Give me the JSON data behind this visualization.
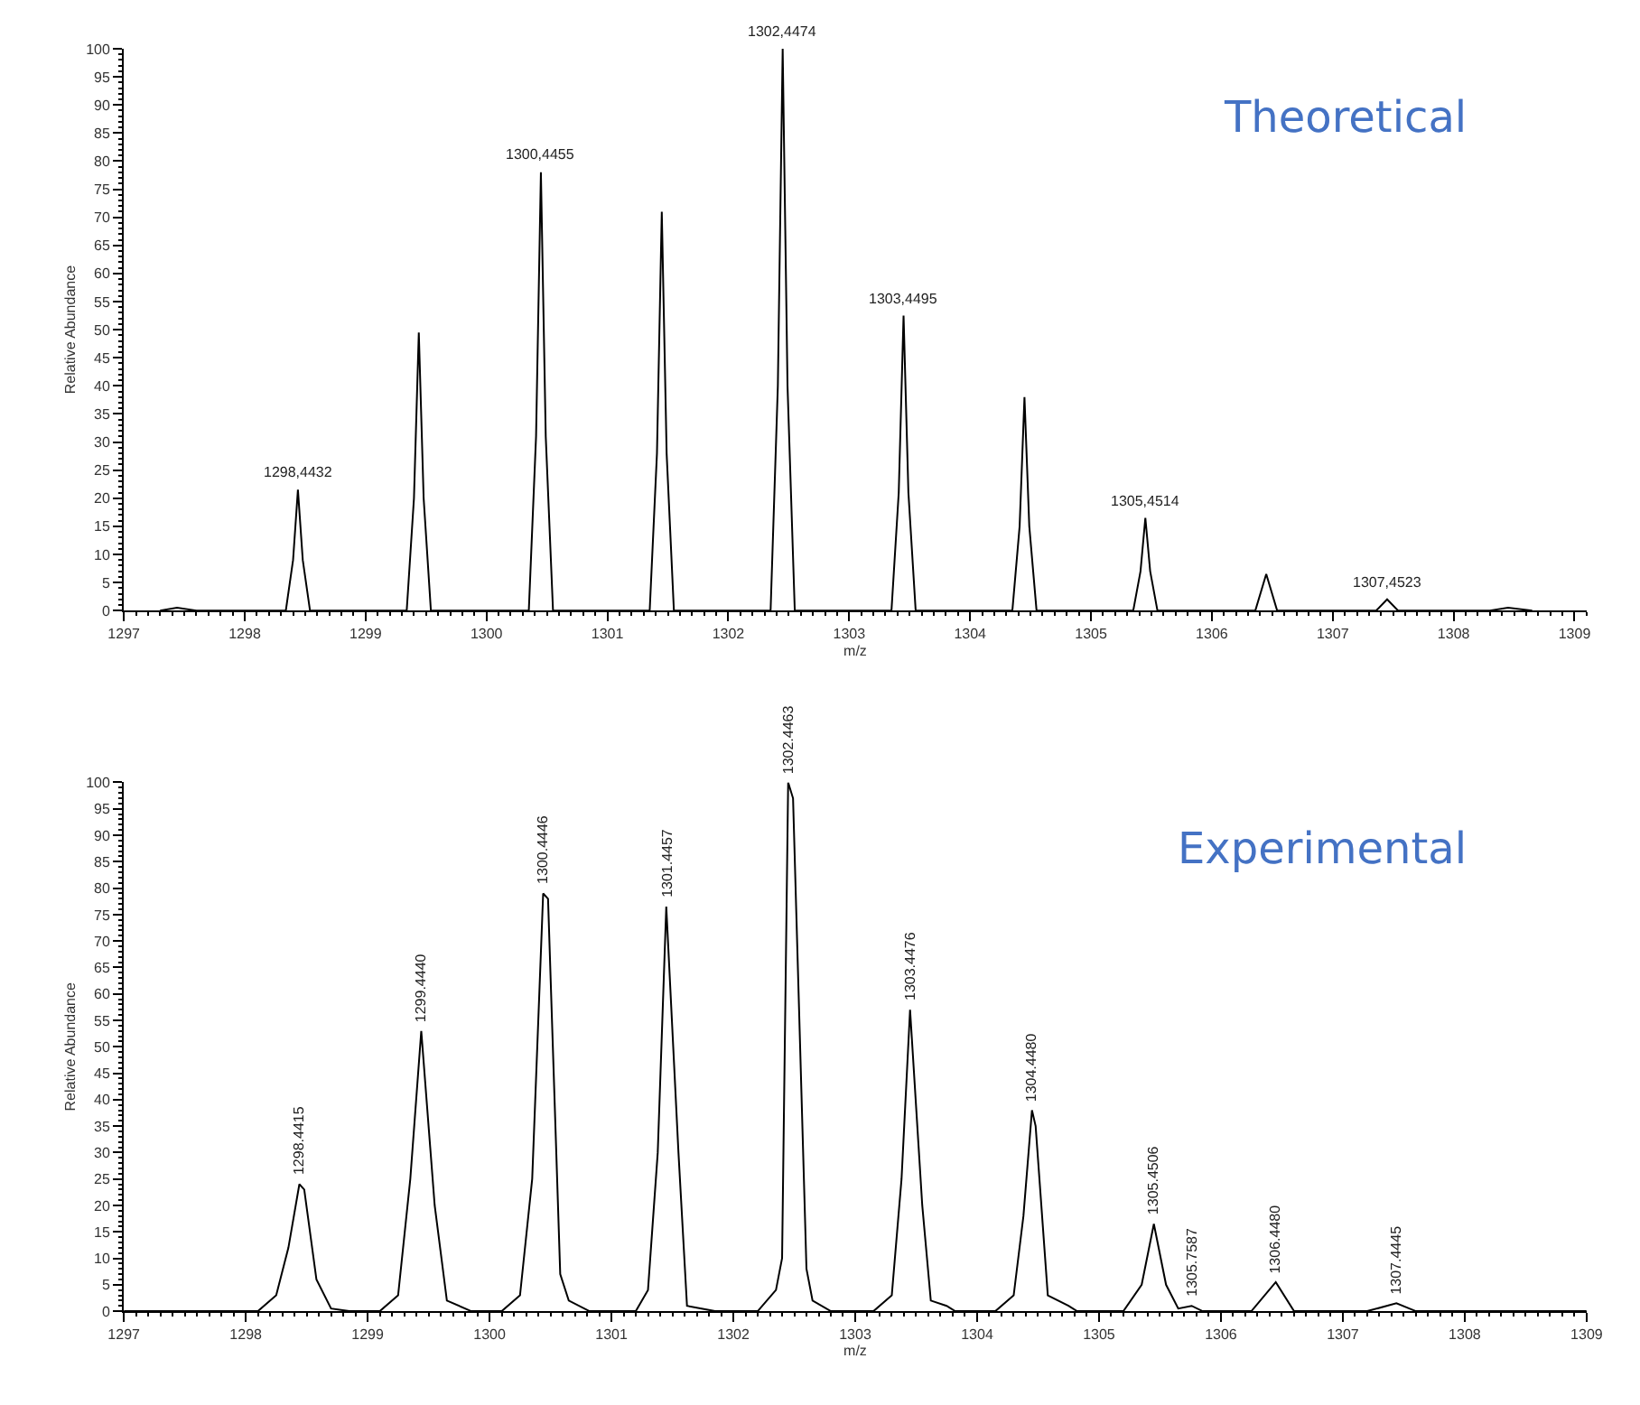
{
  "chart_data": [
    {
      "type": "line",
      "title": "Theoretical",
      "xlabel": "m/z",
      "ylabel": "Relative Abundance",
      "xlim": [
        1297,
        1309.1
      ],
      "xticks": [
        1297,
        1298,
        1299,
        1300,
        1301,
        1302,
        1303,
        1304,
        1305,
        1306,
        1307,
        1308,
        1309
      ],
      "ylim": [
        0,
        100
      ],
      "yticks": [
        0,
        5,
        10,
        15,
        20,
        25,
        30,
        35,
        40,
        45,
        50,
        55,
        60,
        65,
        70,
        75,
        80,
        85,
        90,
        95,
        100
      ],
      "marker": "none",
      "line_style": "solid",
      "series": [
        {
          "color": "#000000",
          "x": [
            1297.3,
            1297.44,
            1297.6,
            1298.34,
            1298.4,
            1298.44,
            1298.48,
            1298.54,
            1299.34,
            1299.4,
            1299.44,
            1299.48,
            1299.54,
            1300.35,
            1300.41,
            1300.45,
            1300.49,
            1300.55,
            1301.35,
            1301.41,
            1301.45,
            1301.49,
            1301.55,
            1302.35,
            1302.41,
            1302.45,
            1302.49,
            1302.55,
            1303.35,
            1303.41,
            1303.45,
            1303.49,
            1303.55,
            1304.35,
            1304.41,
            1304.45,
            1304.49,
            1304.55,
            1305.35,
            1305.41,
            1305.45,
            1305.49,
            1305.55,
            1306.36,
            1306.45,
            1306.54,
            1307.36,
            1307.45,
            1307.54,
            1308.3,
            1308.45,
            1308.65
          ],
          "values": [
            0,
            0.5,
            0,
            0,
            9,
            21.5,
            9,
            0,
            0,
            20,
            49.5,
            20,
            0,
            0,
            31,
            78,
            31,
            0,
            0,
            28,
            71,
            28,
            0,
            0,
            40,
            100,
            40,
            0,
            0,
            21,
            52.5,
            21,
            0,
            0,
            15,
            38,
            15,
            0,
            0,
            7,
            16.5,
            7,
            0,
            0,
            6.5,
            0,
            0,
            2,
            0,
            0,
            0.5,
            0
          ]
        }
      ],
      "annotations": [
        {
          "text": "1298,4432",
          "x": 1298.44,
          "y": 21.5
        },
        {
          "text": "1300,4455",
          "x": 1300.45,
          "y": 78
        },
        {
          "text": "1302,4474",
          "x": 1302.45,
          "y": 100
        },
        {
          "text": "1303,4495",
          "x": 1303.45,
          "y": 52.5
        },
        {
          "text": "1305,4514",
          "x": 1305.45,
          "y": 16.5
        },
        {
          "text": "1307,4523",
          "x": 1307.45,
          "y": 2
        }
      ]
    },
    {
      "type": "line",
      "title": "Experimental",
      "xlabel": "m/z",
      "ylabel": "Relative Abundance",
      "xlim": [
        1297,
        1309
      ],
      "xticks": [
        1297,
        1298,
        1299,
        1300,
        1301,
        1302,
        1303,
        1304,
        1305,
        1306,
        1307,
        1308,
        1309
      ],
      "ylim": [
        0,
        100
      ],
      "yticks": [
        0,
        5,
        10,
        15,
        20,
        25,
        30,
        35,
        40,
        45,
        50,
        55,
        60,
        65,
        70,
        75,
        80,
        85,
        90,
        95,
        100
      ],
      "marker": "none",
      "line_style": "solid",
      "series": [
        {
          "color": "#000000",
          "x": [
            1297,
            1298.1,
            1298.25,
            1298.35,
            1298.44,
            1298.48,
            1298.58,
            1298.7,
            1298.85,
            1299.1,
            1299.25,
            1299.35,
            1299.44,
            1299.55,
            1299.65,
            1299.85,
            1300.1,
            1300.25,
            1300.35,
            1300.44,
            1300.48,
            1300.58,
            1300.65,
            1300.82,
            1301.2,
            1301.3,
            1301.38,
            1301.45,
            1301.55,
            1301.62,
            1301.85,
            1302.2,
            1302.35,
            1302.4,
            1302.45,
            1302.49,
            1302.6,
            1302.65,
            1302.8,
            1303.15,
            1303.3,
            1303.38,
            1303.45,
            1303.55,
            1303.62,
            1303.75,
            1303.82,
            1304.15,
            1304.3,
            1304.38,
            1304.45,
            1304.48,
            1304.58,
            1304.75,
            1304.82,
            1305.2,
            1305.35,
            1305.45,
            1305.55,
            1305.65,
            1305.76,
            1305.85,
            1306.25,
            1306.45,
            1306.6,
            1307.2,
            1307.44,
            1307.6,
            1309
          ],
          "values": [
            0,
            0,
            3,
            12,
            24,
            23,
            6,
            0.5,
            0,
            0,
            3,
            25,
            53,
            20,
            2,
            0,
            0,
            3,
            25,
            79,
            78,
            7,
            2,
            0,
            0,
            4,
            30,
            76.5,
            30,
            1,
            0,
            0,
            4,
            10,
            100,
            97,
            8,
            2,
            0,
            0,
            3,
            25,
            57,
            20,
            2,
            1,
            0,
            0,
            3,
            18,
            38,
            35,
            3,
            1,
            0,
            0,
            5,
            16.5,
            5,
            0.5,
            1,
            0,
            0,
            5.5,
            0,
            0,
            1.5,
            0,
            0
          ]
        }
      ],
      "annotations": [
        {
          "text": "1298.4415",
          "x": 1298.44,
          "y": 24
        },
        {
          "text": "1299.4440",
          "x": 1299.44,
          "y": 53
        },
        {
          "text": "1300.4446",
          "x": 1300.44,
          "y": 79
        },
        {
          "text": "1301.4457",
          "x": 1301.45,
          "y": 76.5
        },
        {
          "text": "1302.4463",
          "x": 1302.45,
          "y": 100
        },
        {
          "text": "1303.4476",
          "x": 1303.45,
          "y": 57
        },
        {
          "text": "1304.4480",
          "x": 1304.45,
          "y": 38
        },
        {
          "text": "1305.4506",
          "x": 1305.45,
          "y": 16.5
        },
        {
          "text": "1305.7587",
          "x": 1305.76,
          "y": 1
        },
        {
          "text": "1306.4480",
          "x": 1306.45,
          "y": 5.5
        },
        {
          "text": "1307.4445",
          "x": 1307.44,
          "y": 1.5
        }
      ]
    }
  ]
}
